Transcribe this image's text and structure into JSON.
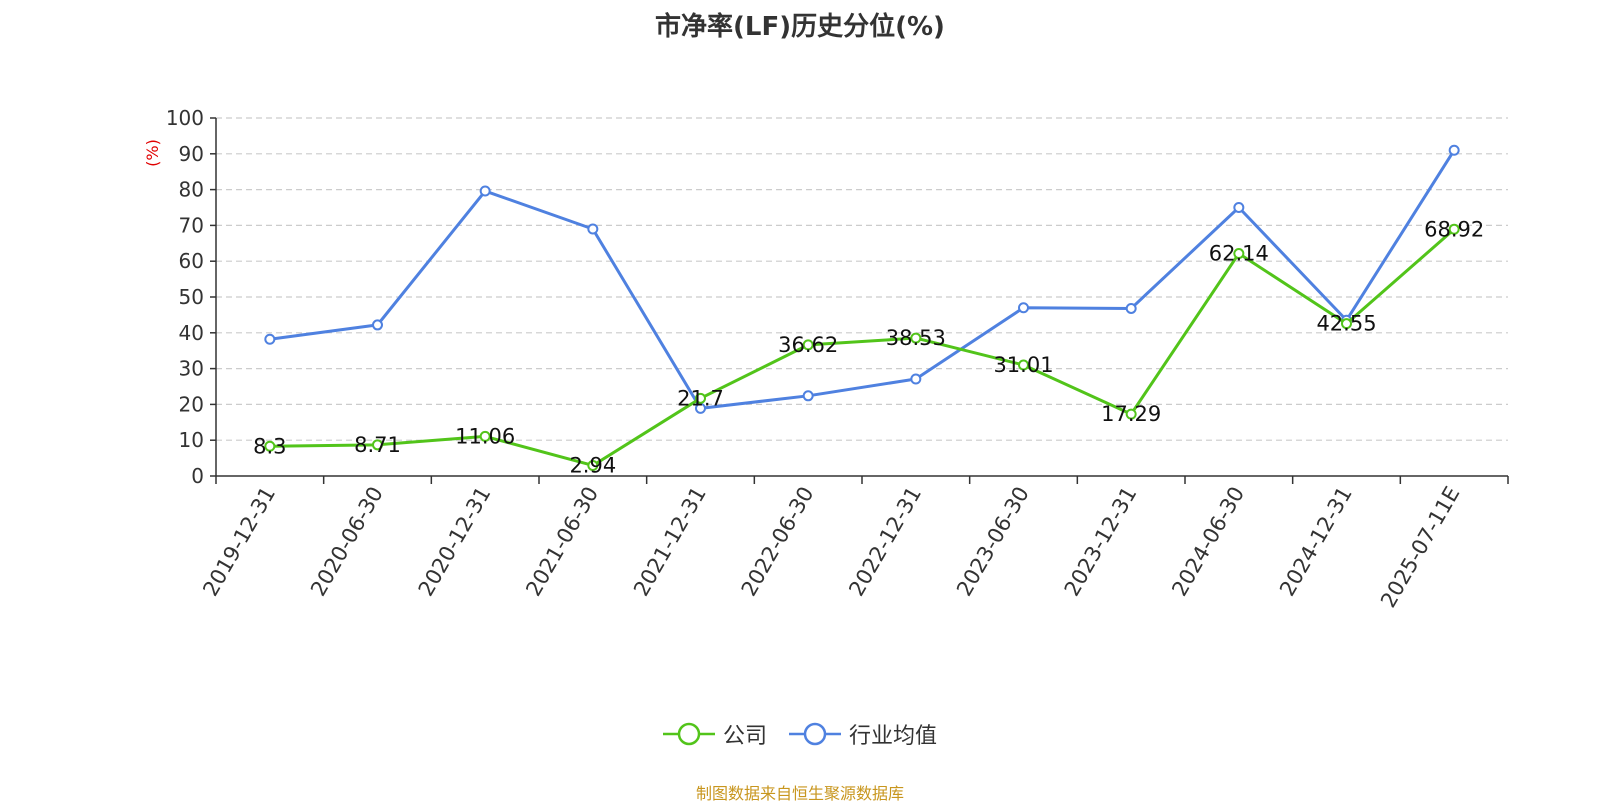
{
  "chart_data": {
    "type": "line",
    "title": "市净率(LF)历史分位(%)",
    "ylabel": "(%)",
    "ylim": [
      0,
      100
    ],
    "yticks": [
      0,
      10,
      20,
      30,
      40,
      50,
      60,
      70,
      80,
      90,
      100
    ],
    "grid": true,
    "legend_position": "bottom",
    "categories": [
      "2019-12-31",
      "2020-06-30",
      "2020-12-31",
      "2021-06-30",
      "2021-12-31",
      "2022-06-30",
      "2022-12-31",
      "2023-06-30",
      "2023-12-31",
      "2024-06-30",
      "2024-12-31",
      "2025-07-11E"
    ],
    "series": [
      {
        "name": "公司",
        "color": "#52c41a",
        "values": [
          8.3,
          8.71,
          11.06,
          2.94,
          21.7,
          36.62,
          38.53,
          31.01,
          17.29,
          62.14,
          42.55,
          68.92
        ],
        "labels": [
          "8.3",
          "8.71",
          "11.06",
          "2.94",
          "21.7",
          "36.62",
          "38.53",
          "31.01",
          "17.29",
          "62.14",
          "42.55",
          "68.92"
        ]
      },
      {
        "name": "行业均值",
        "color": "#4f81e0",
        "values": [
          38.2,
          42.2,
          79.6,
          69.0,
          18.9,
          22.4,
          27.1,
          47.0,
          46.8,
          75.0,
          43.5,
          91.0
        ]
      }
    ]
  },
  "source_note": "制图数据来自恒生聚源数据库"
}
